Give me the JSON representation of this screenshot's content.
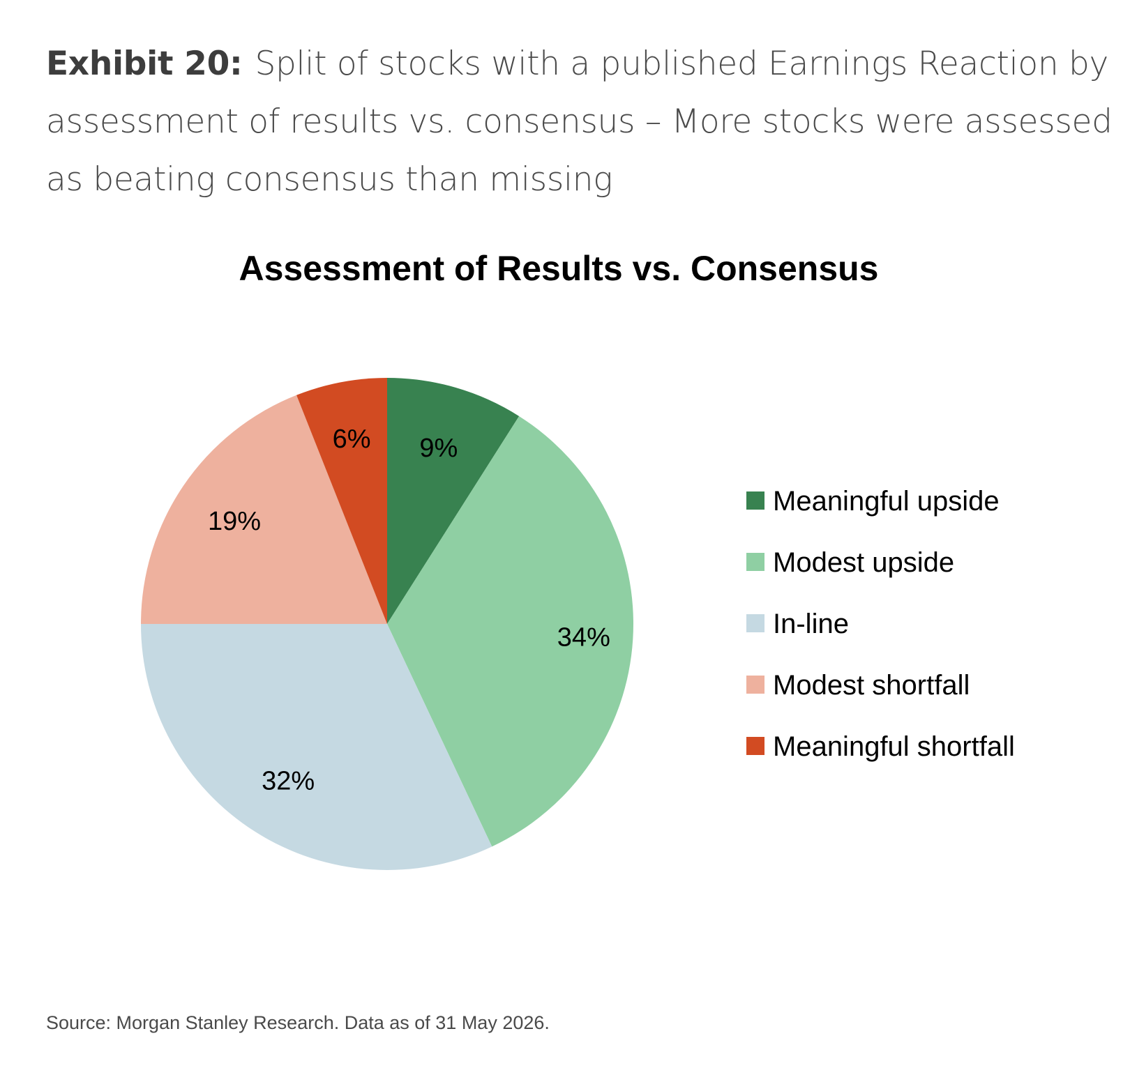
{
  "caption": {
    "label": "Exhibit 20:",
    "text": "Split of stocks with a published Earnings Reaction by assessment of results vs. consensus – More stocks were assessed as beating consensus than missing"
  },
  "source": "Source: Morgan Stanley Research. Data as of 31 May 2026.",
  "chart_data": {
    "type": "pie",
    "title": "Assessment of Results vs. Consensus",
    "legend_position": "right",
    "categories": [
      "Meaningful upside",
      "Modest upside",
      "In-line",
      "Modest shortfall",
      "Meaningful shortfall"
    ],
    "values": [
      9,
      34,
      32,
      19,
      6
    ],
    "labels": [
      "9%",
      "34%",
      "32%",
      "19%",
      "6%"
    ],
    "colors": [
      "#388250",
      "#8fcfa3",
      "#c5d9e2",
      "#eeb19e",
      "#d24b22"
    ],
    "start": "12 o'clock",
    "direction": "clockwise"
  }
}
